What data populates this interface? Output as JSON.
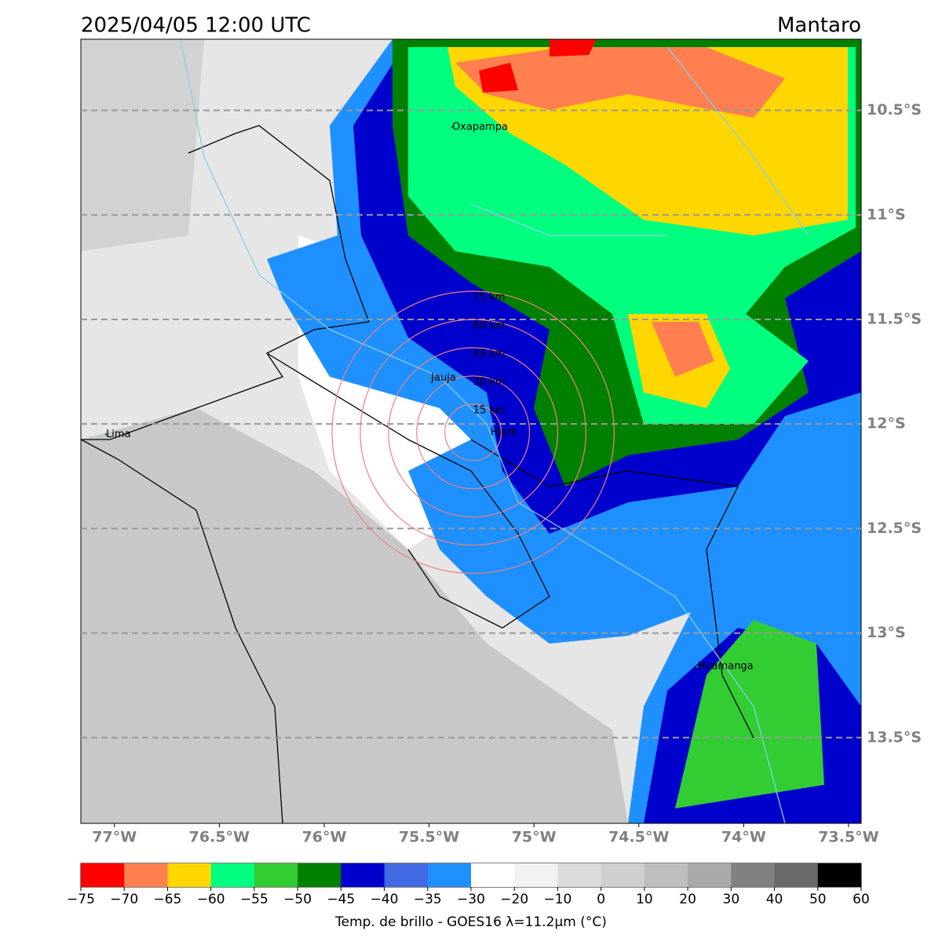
{
  "header": {
    "title": "2025/04/05 12:00 UTC",
    "region": "Mantaro"
  },
  "map": {
    "xlim": [
      -77.16,
      -73.44
    ],
    "ylim": [
      -13.91,
      -10.16
    ],
    "xticks": [
      {
        "value": -77,
        "label": "77°W"
      },
      {
        "value": -76.5,
        "label": "76.5°W"
      },
      {
        "value": -76,
        "label": "76°W"
      },
      {
        "value": -75.5,
        "label": "75.5°W"
      },
      {
        "value": -75,
        "label": "75°W"
      },
      {
        "value": -74.5,
        "label": "74.5°W"
      },
      {
        "value": -74,
        "label": "74°W"
      },
      {
        "value": -73.5,
        "label": "73.5°W"
      }
    ],
    "yticks": [
      {
        "value": -10.5,
        "label": "10.5°S"
      },
      {
        "value": -11,
        "label": "11°S"
      },
      {
        "value": -11.5,
        "label": "11.5°S"
      },
      {
        "value": -12,
        "label": "12°S"
      },
      {
        "value": -12.5,
        "label": "12.5°S"
      },
      {
        "value": -13,
        "label": "13°S"
      },
      {
        "value": -13.5,
        "label": "13.5°S"
      }
    ],
    "places": [
      {
        "name": "Oxapampa",
        "lon": -75.39,
        "lat": -10.58
      },
      {
        "name": "Jauja",
        "lon": -75.49,
        "lat": -11.78
      },
      {
        "name": "Hjork",
        "lon": -75.29,
        "lat": -12.04
      },
      {
        "name": "Lima",
        "lon": -77.04,
        "lat": -12.05
      },
      {
        "name": "Huamanga",
        "lon": -74.22,
        "lat": -13.16
      }
    ],
    "rings": [
      {
        "label": "15 km",
        "radius_km": 15
      },
      {
        "label": "30 km",
        "radius_km": 30
      },
      {
        "label": "45 km",
        "radius_km": 45
      },
      {
        "label": "60 km",
        "radius_km": 60
      },
      {
        "label": "75 km",
        "radius_km": 75
      }
    ]
  },
  "colorbar": {
    "label": "Temp. de brillo - GOES16 λ=11.2μm (°C)",
    "ticks": [
      {
        "value": -75,
        "label": "−75"
      },
      {
        "value": -70,
        "label": "−70"
      },
      {
        "value": -65,
        "label": "−65"
      },
      {
        "value": -60,
        "label": "−60"
      },
      {
        "value": -55,
        "label": "−55"
      },
      {
        "value": -50,
        "label": "−50"
      },
      {
        "value": -45,
        "label": "−45"
      },
      {
        "value": -40,
        "label": "−40"
      },
      {
        "value": -35,
        "label": "−35"
      },
      {
        "value": -30,
        "label": "−30"
      },
      {
        "value": -20,
        "label": "−20"
      },
      {
        "value": -10,
        "label": "−10"
      },
      0,
      10,
      20,
      30,
      40,
      50,
      60
    ],
    "colors": [
      "#ff0000",
      "#ff7f50",
      "#ffd700",
      "#00ff7f",
      "#32cd32",
      "#008000",
      "#0000cd",
      "#4169e1",
      "#1e90ff",
      "#ffffff",
      "#f2f2f2",
      "#dcdcdc",
      "#cfcfcf",
      "#bebebe",
      "#a9a9a9",
      "#808080",
      "#696969",
      "#000000"
    ]
  }
}
